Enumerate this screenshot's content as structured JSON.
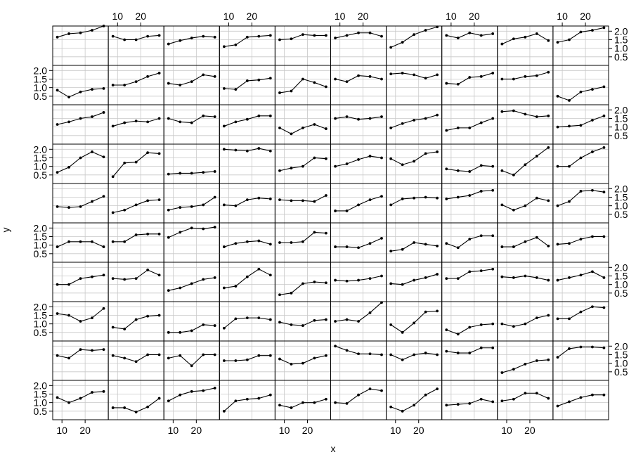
{
  "chart_data": {
    "type": "line",
    "layout": {
      "columns": 10,
      "rows": 10
    },
    "xlabel": "x",
    "ylabel": "y",
    "xlim": [
      6,
      30
    ],
    "ylim": [
      0.0,
      2.3
    ],
    "x_ticks": [
      10,
      20
    ],
    "y_ticks": [
      0.5,
      1.0,
      1.5,
      2.0
    ],
    "x_tick_labels": [
      "10",
      "20"
    ],
    "y_tick_labels": [
      "0.5",
      "1.0",
      "1.5",
      "2.0"
    ],
    "x": [
      8,
      13,
      18,
      23,
      28
    ],
    "grid": true,
    "marker": "filled-circle",
    "panels": [
      [
        1.65,
        1.85,
        1.9,
        2.05,
        2.3
      ],
      [
        1.7,
        1.5,
        1.5,
        1.7,
        1.75
      ],
      [
        1.25,
        1.45,
        1.6,
        1.7,
        1.65
      ],
      [
        1.1,
        1.2,
        1.65,
        1.7,
        1.75
      ],
      [
        1.5,
        1.55,
        1.8,
        1.75,
        1.75
      ],
      [
        1.6,
        1.75,
        1.9,
        1.9,
        1.7
      ],
      [
        1.05,
        1.35,
        1.8,
        2.05,
        2.25
      ],
      [
        1.75,
        1.6,
        1.9,
        1.75,
        1.85
      ],
      [
        1.25,
        1.55,
        1.65,
        1.85,
        1.45
      ],
      [
        1.35,
        1.5,
        1.95,
        2.05,
        2.2
      ],
      [
        0.85,
        0.45,
        0.75,
        0.9,
        0.95
      ],
      [
        1.15,
        1.15,
        1.35,
        1.65,
        1.85
      ],
      [
        1.25,
        1.15,
        1.35,
        1.75,
        1.65
      ],
      [
        0.95,
        0.9,
        1.4,
        1.45,
        1.55
      ],
      [
        0.7,
        0.8,
        1.5,
        1.3,
        1.05
      ],
      [
        1.5,
        1.35,
        1.7,
        1.65,
        1.5
      ],
      [
        1.8,
        1.85,
        1.75,
        1.55,
        1.75
      ],
      [
        1.25,
        1.2,
        1.6,
        1.65,
        1.85
      ],
      [
        1.5,
        1.5,
        1.65,
        1.7,
        1.9
      ],
      [
        0.5,
        0.25,
        0.75,
        0.9,
        1.05
      ],
      [
        1.15,
        1.3,
        1.5,
        1.6,
        1.85
      ],
      [
        1.05,
        1.25,
        1.35,
        1.3,
        1.5
      ],
      [
        1.5,
        1.3,
        1.25,
        1.65,
        1.6
      ],
      [
        1.05,
        1.3,
        1.45,
        1.65,
        1.65
      ],
      [
        0.95,
        0.6,
        0.95,
        1.15,
        0.9
      ],
      [
        1.5,
        1.6,
        1.45,
        1.5,
        1.6
      ],
      [
        0.95,
        1.2,
        1.4,
        1.5,
        1.7
      ],
      [
        0.8,
        0.95,
        0.95,
        1.25,
        1.5
      ],
      [
        1.9,
        1.95,
        1.75,
        1.6,
        1.65
      ],
      [
        1.0,
        1.05,
        1.1,
        1.4,
        1.65
      ],
      [
        0.65,
        0.95,
        1.5,
        1.85,
        1.55
      ],
      [
        0.4,
        1.2,
        1.25,
        1.8,
        1.75
      ],
      [
        0.55,
        0.6,
        0.6,
        0.65,
        0.7
      ],
      [
        2.0,
        1.95,
        1.9,
        2.05,
        1.9
      ],
      [
        0.75,
        0.9,
        1.0,
        1.5,
        1.45
      ],
      [
        1.0,
        1.15,
        1.4,
        1.6,
        1.5
      ],
      [
        1.45,
        1.1,
        1.3,
        1.75,
        1.85
      ],
      [
        0.85,
        0.75,
        0.7,
        1.05,
        1.0
      ],
      [
        0.75,
        0.5,
        1.1,
        1.6,
        2.1
      ],
      [
        1.0,
        1.0,
        1.5,
        1.85,
        2.1
      ],
      [
        0.95,
        0.9,
        0.95,
        1.25,
        1.55
      ],
      [
        0.6,
        0.75,
        1.05,
        1.3,
        1.35
      ],
      [
        0.75,
        0.9,
        0.95,
        1.05,
        1.5
      ],
      [
        1.05,
        1.0,
        1.35,
        1.45,
        1.4
      ],
      [
        1.35,
        1.3,
        1.3,
        1.25,
        1.6
      ],
      [
        0.7,
        0.7,
        1.05,
        1.35,
        1.55
      ],
      [
        1.05,
        1.4,
        1.45,
        1.5,
        1.45
      ],
      [
        1.4,
        1.5,
        1.6,
        1.85,
        1.9
      ],
      [
        1.05,
        0.75,
        1.0,
        1.45,
        1.3
      ],
      [
        1.0,
        1.25,
        1.85,
        1.9,
        1.8
      ],
      [
        0.9,
        1.2,
        1.2,
        1.2,
        0.9
      ],
      [
        1.2,
        1.2,
        1.6,
        1.65,
        1.65
      ],
      [
        1.45,
        1.75,
        2.0,
        1.95,
        2.05
      ],
      [
        0.9,
        1.1,
        1.2,
        1.25,
        1.05
      ],
      [
        1.15,
        1.15,
        1.2,
        1.75,
        1.7
      ],
      [
        0.9,
        0.9,
        0.85,
        1.1,
        1.4
      ],
      [
        0.65,
        0.75,
        1.15,
        1.05,
        0.95
      ],
      [
        1.1,
        0.85,
        1.35,
        1.55,
        1.55
      ],
      [
        0.9,
        0.9,
        1.2,
        1.45,
        0.95
      ],
      [
        1.05,
        1.1,
        1.35,
        1.5,
        1.5
      ],
      [
        1.0,
        1.0,
        1.35,
        1.45,
        1.55
      ],
      [
        1.35,
        1.3,
        1.35,
        1.85,
        1.55
      ],
      [
        0.65,
        0.8,
        1.05,
        1.3,
        1.4
      ],
      [
        0.8,
        0.9,
        1.45,
        1.9,
        1.55
      ],
      [
        0.4,
        0.5,
        1.05,
        1.15,
        1.1
      ],
      [
        1.25,
        1.2,
        1.25,
        1.35,
        1.5
      ],
      [
        1.05,
        1.0,
        1.25,
        1.4,
        1.6
      ],
      [
        1.35,
        1.35,
        1.75,
        1.8,
        1.9
      ],
      [
        1.45,
        1.4,
        1.5,
        1.4,
        1.25
      ],
      [
        1.25,
        1.4,
        1.55,
        1.75,
        1.4
      ],
      [
        1.6,
        1.5,
        1.15,
        1.35,
        1.9
      ],
      [
        0.8,
        0.7,
        1.25,
        1.45,
        1.5
      ],
      [
        0.5,
        0.5,
        0.6,
        0.95,
        0.9
      ],
      [
        0.75,
        1.3,
        1.35,
        1.35,
        1.25
      ],
      [
        1.1,
        0.95,
        0.9,
        1.2,
        1.25
      ],
      [
        1.15,
        1.25,
        1.15,
        1.65,
        2.25
      ],
      [
        0.95,
        0.5,
        1.05,
        1.7,
        1.75
      ],
      [
        0.65,
        0.4,
        0.8,
        0.95,
        1.0
      ],
      [
        1.0,
        0.85,
        1.0,
        1.35,
        1.5
      ],
      [
        1.3,
        1.3,
        1.7,
        2.0,
        1.95
      ],
      [
        1.45,
        1.3,
        1.8,
        1.75,
        1.8
      ],
      [
        1.45,
        1.3,
        1.1,
        1.5,
        1.5
      ],
      [
        1.3,
        1.45,
        0.85,
        1.5,
        1.5
      ],
      [
        1.15,
        1.15,
        1.2,
        1.45,
        1.45
      ],
      [
        1.25,
        0.95,
        1.0,
        1.3,
        1.45
      ],
      [
        2.0,
        1.75,
        1.55,
        1.55,
        1.5
      ],
      [
        1.5,
        1.2,
        1.5,
        1.6,
        1.5
      ],
      [
        1.7,
        1.6,
        1.6,
        1.9,
        1.9
      ],
      [
        0.45,
        0.65,
        0.95,
        1.15,
        1.2
      ],
      [
        1.35,
        1.85,
        1.95,
        1.95,
        1.9
      ],
      [
        1.3,
        1.0,
        1.25,
        1.6,
        1.65
      ],
      [
        0.7,
        0.7,
        0.45,
        0.75,
        1.25
      ],
      [
        1.1,
        1.45,
        1.65,
        1.7,
        1.85
      ],
      [
        0.5,
        1.1,
        1.2,
        1.25,
        1.45
      ],
      [
        0.85,
        0.7,
        1.0,
        1.0,
        1.2
      ],
      [
        1.0,
        0.95,
        1.45,
        1.8,
        1.7
      ],
      [
        0.75,
        0.5,
        0.85,
        1.45,
        1.8
      ],
      [
        0.85,
        0.9,
        0.95,
        1.2,
        1.05
      ],
      [
        1.1,
        1.2,
        1.55,
        1.55,
        1.25
      ],
      [
        0.8,
        1.05,
        1.3,
        1.45,
        1.45
      ]
    ]
  }
}
